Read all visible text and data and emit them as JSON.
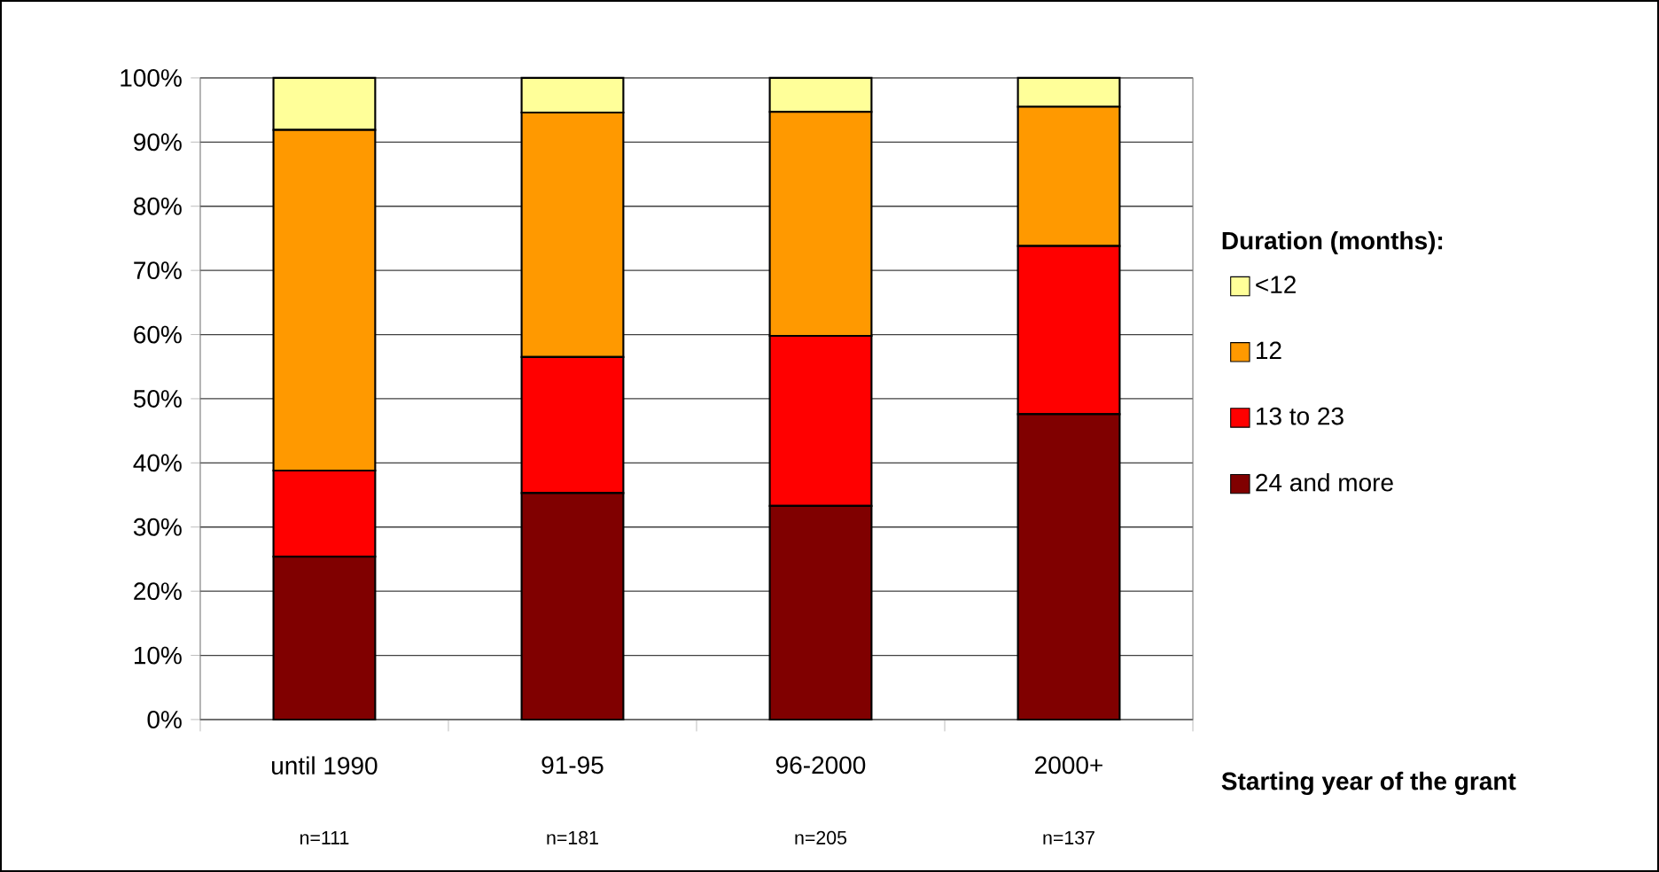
{
  "chart_data": {
    "type": "bar",
    "stacked": true,
    "categories": [
      "until 1990",
      "91-95",
      "96-2000",
      "2000+"
    ],
    "series": [
      {
        "name": "24 and more",
        "color": "#800000",
        "values": [
          25.4,
          35.3,
          33.3,
          47.6
        ]
      },
      {
        "name": "13 to 23",
        "color": "#ff0000",
        "values": [
          13.4,
          21.2,
          26.5,
          26.2
        ]
      },
      {
        "name": "12",
        "color": "#ff9900",
        "values": [
          53.1,
          38.1,
          34.9,
          21.7
        ]
      },
      {
        "name": "<12",
        "color": "#ffff99",
        "values": [
          8.1,
          5.4,
          5.3,
          4.5
        ]
      }
    ],
    "xlabel": "Starting year of the grant",
    "legend_title": "Duration (months):",
    "legend": "right",
    "grid": "y",
    "ylim": [
      0,
      100
    ],
    "yticks": [
      {
        "value": 0,
        "label": "0%"
      },
      {
        "value": 10,
        "label": "10%"
      },
      {
        "value": 20,
        "label": "20%"
      },
      {
        "value": 30,
        "label": "30%"
      },
      {
        "value": 40,
        "label": "40%"
      },
      {
        "value": 50,
        "label": "50%"
      },
      {
        "value": 60,
        "label": "60%"
      },
      {
        "value": 70,
        "label": "70%"
      },
      {
        "value": 80,
        "label": "80%"
      },
      {
        "value": 90,
        "label": "90%"
      },
      {
        "value": 100,
        "label": "100%"
      }
    ],
    "annotations": [
      "n=111",
      "n=181",
      "n=205",
      "n=137"
    ]
  }
}
